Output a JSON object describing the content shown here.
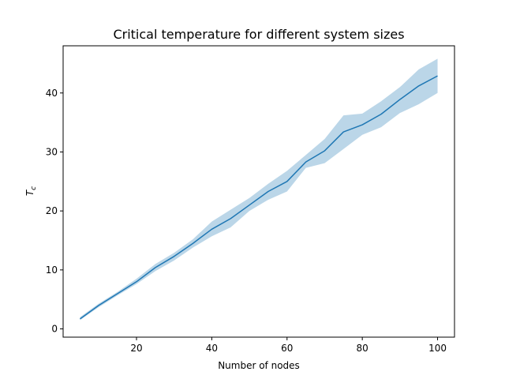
{
  "chart_data": {
    "type": "line",
    "title": "Critical temperature for different system sizes",
    "xlabel": "Number of nodes",
    "ylabel": "T_c",
    "ylabel_main": "T",
    "ylabel_sub": "c",
    "xlim": [
      0.5,
      104.5
    ],
    "ylim": [
      -1.4,
      48.0
    ],
    "xticks": [
      20,
      40,
      60,
      80,
      100
    ],
    "yticks": [
      0,
      10,
      20,
      30,
      40
    ],
    "grid": false,
    "colors": {
      "line": "#1f77b4",
      "band": "#1f77b4",
      "band_opacity": 0.3
    },
    "series": [
      {
        "x": [
          5,
          10,
          15,
          20,
          25,
          30,
          35,
          40,
          45,
          50,
          55,
          60,
          65,
          70,
          75,
          80,
          85,
          90,
          95,
          100
        ],
        "values": [
          1.7,
          4.0,
          6.0,
          8.0,
          10.4,
          12.3,
          14.5,
          16.9,
          18.7,
          21.0,
          23.3,
          25.0,
          28.3,
          30.2,
          33.4,
          34.6,
          36.4,
          38.9,
          41.2,
          42.9
        ],
        "lower": [
          1.5,
          3.7,
          5.7,
          7.6,
          9.8,
          11.6,
          13.8,
          15.7,
          17.2,
          20.0,
          21.9,
          23.3,
          27.3,
          28.1,
          30.5,
          32.9,
          34.2,
          36.6,
          38.1,
          40.0
        ],
        "upper": [
          2.0,
          4.3,
          6.3,
          8.5,
          11.0,
          12.9,
          15.2,
          18.2,
          20.2,
          22.2,
          24.6,
          26.8,
          29.5,
          32.2,
          36.2,
          36.5,
          38.6,
          41.0,
          44.0,
          45.8
        ]
      }
    ]
  }
}
